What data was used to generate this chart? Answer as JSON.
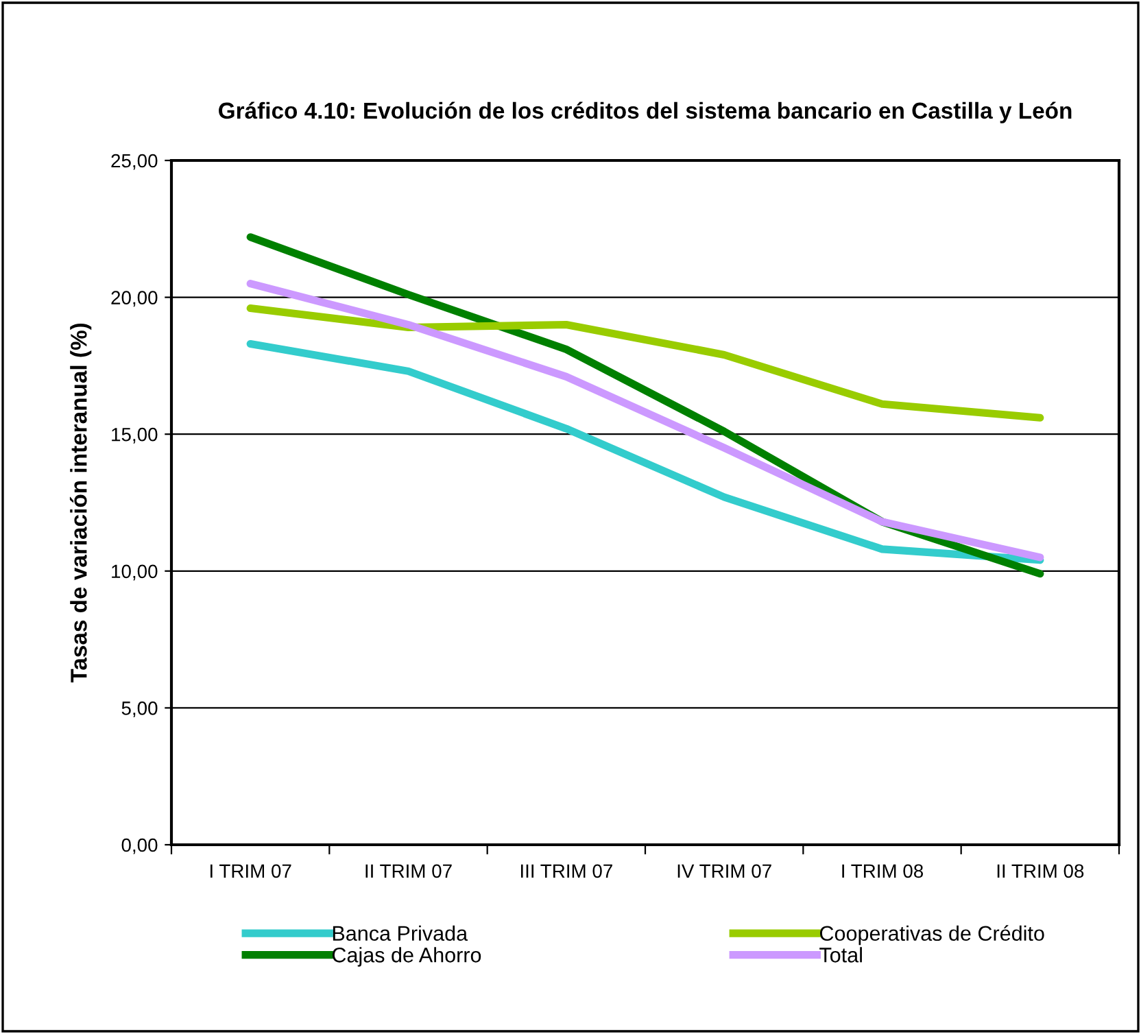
{
  "chart_data": {
    "type": "line",
    "title": "Gráfico 4.10: Evolución de los créditos del sistema bancario en Castilla y León",
    "ylabel": "Tasas de variación interanual (%)",
    "categories": [
      "I TRIM 07",
      "II TRIM 07",
      "III TRIM 07",
      "IV TRIM 07",
      "I TRIM 08",
      "II TRIM 08"
    ],
    "series": [
      {
        "name": "Banca Privada",
        "color": "#33cccc",
        "values": [
          18.3,
          17.3,
          15.2,
          12.7,
          10.8,
          10.4
        ]
      },
      {
        "name": "Cajas de Ahorro",
        "color": "#008000",
        "values": [
          22.2,
          20.1,
          18.1,
          15.1,
          11.8,
          9.9
        ]
      },
      {
        "name": "Cooperativas de Crédito",
        "color": "#99cc00",
        "values": [
          19.6,
          18.9,
          19.0,
          17.9,
          16.1,
          15.6
        ]
      },
      {
        "name": "Total",
        "color": "#cc99ff",
        "values": [
          20.5,
          19.0,
          17.1,
          14.5,
          11.8,
          10.5
        ]
      }
    ],
    "ylim": [
      0,
      25
    ],
    "yticks": [
      {
        "value": 0,
        "label": "0,00"
      },
      {
        "value": 5,
        "label": "5,00"
      },
      {
        "value": 10,
        "label": "10,00"
      },
      {
        "value": 15,
        "label": "15,00"
      },
      {
        "value": 20,
        "label": "20,00"
      },
      {
        "value": 25,
        "label": "25,00"
      }
    ],
    "grid": "y",
    "legend": "bottom",
    "marker": "none",
    "line_style": "solid"
  }
}
